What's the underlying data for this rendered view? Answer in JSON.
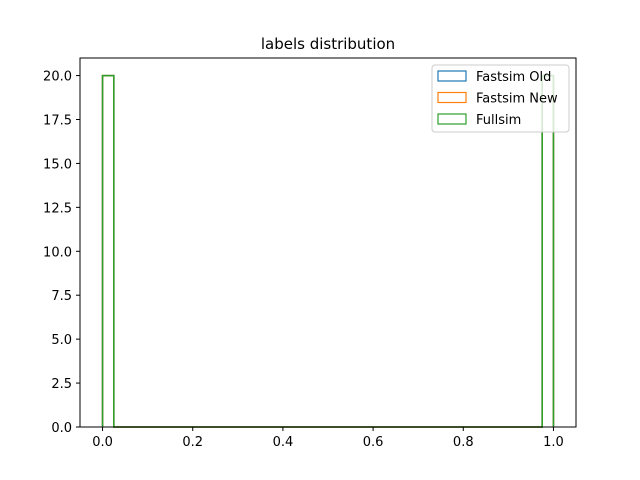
{
  "chart_data": {
    "type": "histogram-step",
    "title": "labels distribution",
    "xlabel": "",
    "ylabel": "",
    "xlim": [
      -0.05,
      1.05
    ],
    "ylim": [
      0,
      21
    ],
    "xticks": [
      0.0,
      0.2,
      0.4,
      0.6,
      0.8,
      1.0
    ],
    "xtick_labels": [
      "0.0",
      "0.2",
      "0.4",
      "0.6",
      "0.8",
      "1.0"
    ],
    "yticks": [
      0.0,
      2.5,
      5.0,
      7.5,
      10.0,
      12.5,
      15.0,
      17.5,
      20.0
    ],
    "ytick_labels": [
      "0.0",
      "2.5",
      "5.0",
      "7.5",
      "10.0",
      "12.5",
      "15.0",
      "17.5",
      "20.0"
    ],
    "bin_edges": [
      0.0,
      0.025,
      0.975,
      1.0
    ],
    "series": [
      {
        "name": "Fastsim Old",
        "color": "#1f77b4",
        "values": [
          20,
          0,
          20
        ]
      },
      {
        "name": "Fastsim New",
        "color": "#ff7f0e",
        "values": [
          20,
          0,
          20
        ]
      },
      {
        "name": "Fullsim",
        "color": "#2ca02c",
        "values": [
          20,
          0,
          20
        ]
      }
    ],
    "legend_position": "top-right",
    "grid": false
  }
}
